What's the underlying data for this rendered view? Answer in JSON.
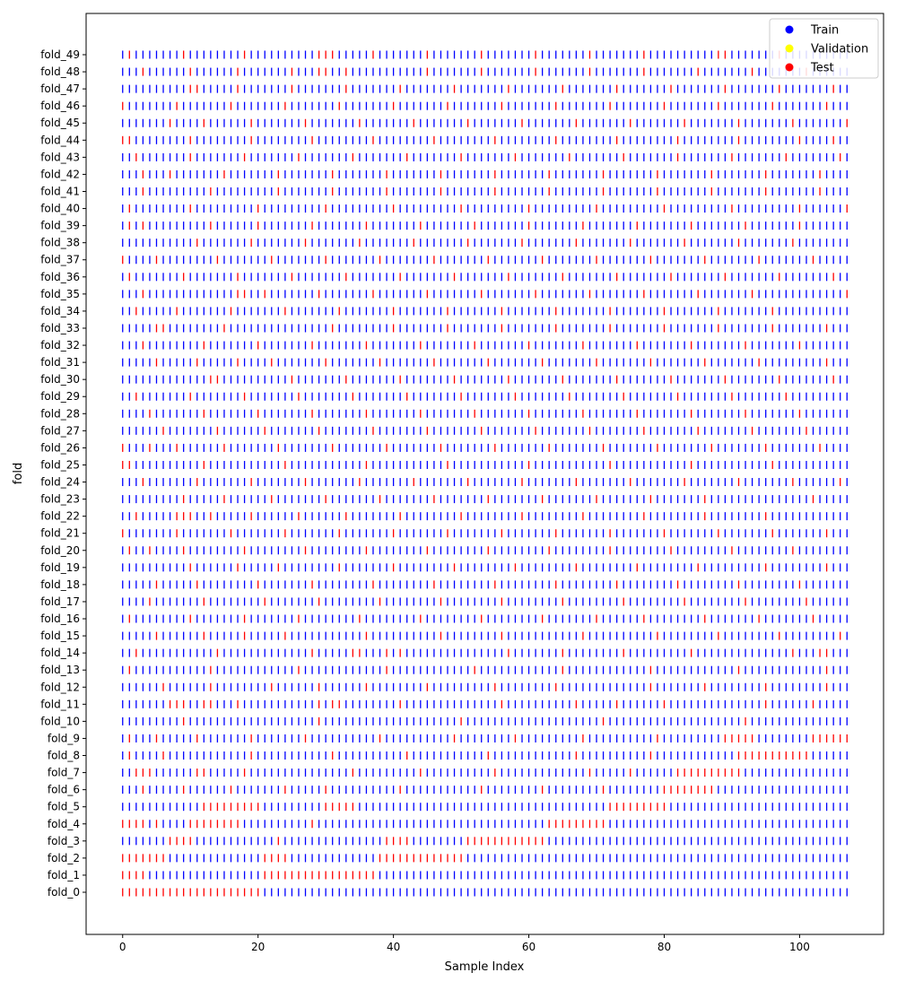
{
  "chart_data": {
    "type": "scatter",
    "title": "",
    "xlabel": "Sample Index",
    "ylabel": "fold",
    "xlim": [
      -5.4,
      112.4
    ],
    "xticks": [
      0,
      20,
      40,
      60,
      80,
      100
    ],
    "n_samples": 108,
    "folds": [
      "fold_0",
      "fold_1",
      "fold_2",
      "fold_3",
      "fold_4",
      "fold_5",
      "fold_6",
      "fold_7",
      "fold_8",
      "fold_9",
      "fold_10",
      "fold_11",
      "fold_12",
      "fold_13",
      "fold_14",
      "fold_15",
      "fold_16",
      "fold_17",
      "fold_18",
      "fold_19",
      "fold_20",
      "fold_21",
      "fold_22",
      "fold_23",
      "fold_24",
      "fold_25",
      "fold_26",
      "fold_27",
      "fold_28",
      "fold_29",
      "fold_30",
      "fold_31",
      "fold_32",
      "fold_33",
      "fold_34",
      "fold_35",
      "fold_36",
      "fold_37",
      "fold_38",
      "fold_39",
      "fold_40",
      "fold_41",
      "fold_42",
      "fold_43",
      "fold_44",
      "fold_45",
      "fold_46",
      "fold_47",
      "fold_48",
      "fold_49"
    ],
    "default_split": "Train",
    "test_indices": {
      "fold_0": [
        0,
        1,
        2,
        3,
        4,
        5,
        6,
        7,
        8,
        9,
        10,
        11,
        12,
        13,
        14,
        15,
        16,
        17,
        18,
        19,
        20
      ],
      "fold_1": [
        0,
        1,
        2,
        3,
        21,
        22,
        23,
        24,
        25,
        26,
        27,
        28,
        29,
        30,
        31,
        32,
        33,
        34,
        35,
        36,
        37
      ],
      "fold_2": [
        0,
        1,
        2,
        3,
        4,
        5,
        6,
        21,
        22,
        23,
        24,
        38,
        39,
        40,
        41,
        42,
        43,
        44,
        45,
        46,
        47,
        48,
        49,
        50
      ],
      "fold_3": [
        7,
        8,
        9,
        10,
        23,
        39,
        40,
        41,
        42,
        51,
        52,
        53,
        54,
        55,
        56,
        57,
        58,
        59,
        60,
        61,
        62
      ],
      "fold_4": [
        0,
        1,
        2,
        3,
        5,
        10,
        11,
        12,
        13,
        14,
        15,
        16,
        17,
        28,
        63,
        64,
        65,
        66,
        67,
        68,
        69,
        70,
        71
      ],
      "fold_5": [
        12,
        13,
        14,
        15,
        16,
        17,
        18,
        19,
        20,
        30,
        31,
        32,
        33,
        34,
        72,
        73,
        74,
        75,
        76,
        77,
        78,
        79,
        80
      ],
      "fold_6": [
        3,
        9,
        16,
        24,
        30,
        41,
        53,
        62,
        71,
        80,
        81,
        82,
        83,
        84,
        85,
        86,
        87
      ],
      "fold_7": [
        2,
        3,
        4,
        11,
        12,
        18,
        34,
        44,
        55,
        69,
        75,
        82,
        83,
        84,
        85,
        86,
        87,
        88,
        89,
        90,
        91
      ],
      "fold_8": [
        1,
        6,
        19,
        31,
        42,
        54,
        67,
        78,
        91,
        92,
        93,
        94,
        95,
        96,
        97,
        98,
        99,
        100,
        101
      ],
      "fold_9": [
        1,
        5,
        11,
        19,
        27,
        38,
        49,
        58,
        68,
        79,
        89,
        90,
        91,
        92,
        93,
        102,
        103,
        104,
        105,
        106,
        107
      ],
      "fold_10": [
        9,
        29,
        50,
        71,
        92
      ],
      "fold_11": [
        7,
        8,
        9,
        12,
        13,
        17,
        29,
        31,
        32,
        41,
        56,
        67,
        73,
        80,
        95,
        102
      ],
      "fold_12": [
        6,
        13,
        22,
        29,
        36,
        45,
        55,
        64,
        78,
        86,
        95,
        104
      ],
      "fold_13": [
        1,
        13,
        26,
        39,
        52,
        65,
        78,
        91,
        104
      ],
      "fold_14": [
        2,
        14,
        28,
        34,
        35,
        39,
        41,
        57,
        65,
        74,
        84,
        99,
        103,
        104
      ],
      "fold_15": [
        5,
        12,
        18,
        24,
        36,
        47,
        56,
        68,
        79,
        88,
        97,
        106
      ],
      "fold_16": [
        1,
        10,
        18,
        26,
        35,
        44,
        53,
        62,
        70,
        77,
        86,
        94,
        102
      ],
      "fold_17": [
        4,
        12,
        21,
        29,
        38,
        47,
        56,
        65,
        74,
        83,
        92,
        101
      ],
      "fold_18": [
        5,
        11,
        20,
        28,
        37,
        46,
        55,
        64,
        73,
        82,
        91,
        100
      ],
      "fold_19": [
        10,
        17,
        23,
        32,
        40,
        49,
        58,
        67,
        76,
        85,
        95,
        104
      ],
      "fold_20": [
        1,
        4,
        9,
        18,
        27,
        36,
        45,
        54,
        63,
        72,
        81,
        90,
        99
      ],
      "fold_21": [
        0,
        8,
        16,
        24,
        32,
        40,
        48,
        56,
        64,
        72,
        80,
        88,
        96,
        104
      ],
      "fold_22": [
        2,
        8,
        9,
        10,
        13,
        19,
        26,
        33,
        41,
        50,
        59,
        68,
        77,
        86,
        95
      ],
      "fold_23": [
        9,
        15,
        22,
        30,
        38,
        46,
        54,
        62,
        70,
        78,
        86,
        102
      ],
      "fold_24": [
        3,
        11,
        19,
        27,
        35,
        43,
        51,
        59,
        67,
        75,
        83,
        91,
        99,
        106
      ],
      "fold_25": [
        0,
        1,
        12,
        24,
        36,
        48,
        60,
        72,
        84,
        96
      ],
      "fold_26": [
        0,
        4,
        8,
        15,
        23,
        31,
        39,
        47,
        55,
        63,
        71,
        79,
        87,
        95,
        103
      ],
      "fold_27": [
        6,
        14,
        21,
        29,
        37,
        45,
        53,
        61,
        69,
        77,
        85,
        93,
        101
      ],
      "fold_28": [
        4,
        12,
        20,
        28,
        36,
        44,
        52,
        60,
        68,
        76,
        84,
        92,
        100
      ],
      "fold_29": [
        2,
        10,
        18,
        26,
        34,
        42,
        50,
        58,
        66,
        74,
        82,
        90,
        98
      ],
      "fold_30": [
        13,
        14,
        25,
        33,
        41,
        49,
        57,
        65,
        73,
        81,
        89,
        97,
        105
      ],
      "fold_31": [
        5,
        11,
        17,
        22,
        30,
        38,
        46,
        54,
        62,
        70,
        78,
        86,
        94,
        104
      ],
      "fold_32": [
        3,
        12,
        20,
        28,
        36,
        44,
        52,
        60,
        68,
        76,
        84,
        92,
        100
      ],
      "fold_33": [
        5,
        6,
        15,
        31,
        40,
        48,
        56,
        64,
        72,
        80,
        88,
        96,
        104
      ],
      "fold_34": [
        2,
        8,
        16,
        24,
        32,
        40,
        48,
        56,
        64,
        72,
        80,
        88,
        96
      ],
      "fold_35": [
        3,
        17,
        18,
        21,
        29,
        37,
        45,
        53,
        61,
        69,
        77,
        85,
        93,
        107
      ],
      "fold_36": [
        1,
        9,
        17,
        25,
        33,
        41,
        49,
        57,
        65,
        73,
        81,
        89,
        97,
        105
      ],
      "fold_37": [
        0,
        5,
        14,
        22,
        30,
        38,
        46,
        54,
        62,
        70,
        78,
        86,
        94,
        102
      ],
      "fold_38": [
        11,
        19,
        27,
        35,
        43,
        51,
        59,
        67,
        75,
        83,
        91,
        99
      ],
      "fold_39": [
        1,
        3,
        13,
        20,
        28,
        36,
        44,
        52,
        60,
        68,
        76,
        84,
        92,
        100
      ],
      "fold_40": [
        1,
        10,
        20,
        30,
        40,
        50,
        60,
        70,
        80,
        90,
        100,
        107
      ],
      "fold_41": [
        3,
        13,
        23,
        31,
        39,
        47,
        55,
        63,
        71,
        79,
        87,
        95,
        103
      ],
      "fold_42": [
        3,
        7,
        15,
        23,
        31,
        39,
        47,
        55,
        63,
        71,
        79,
        87,
        95,
        103
      ],
      "fold_43": [
        2,
        10,
        18,
        26,
        34,
        42,
        50,
        58,
        66,
        74,
        82,
        90,
        98,
        106
      ],
      "fold_44": [
        0,
        1,
        10,
        19,
        28,
        37,
        46,
        55,
        64,
        73,
        82,
        91,
        100,
        105
      ],
      "fold_45": [
        7,
        12,
        19,
        27,
        35,
        43,
        51,
        59,
        67,
        75,
        83,
        91,
        99,
        107
      ],
      "fold_46": [
        0,
        8,
        16,
        24,
        32,
        40,
        48,
        56,
        64,
        72,
        80,
        88,
        96,
        104
      ],
      "fold_47": [
        10,
        11,
        17,
        25,
        33,
        41,
        49,
        57,
        65,
        73,
        81,
        89,
        97,
        105
      ],
      "fold_48": [
        3,
        10,
        17,
        25,
        29,
        30,
        33,
        45,
        53,
        61,
        69,
        77,
        85,
        93,
        101
      ],
      "fold_49": [
        1,
        9,
        18,
        29,
        30,
        31,
        37,
        45,
        53,
        61,
        69,
        77,
        88,
        89,
        97
      ]
    },
    "legend": {
      "placement": "top-right",
      "entries": [
        {
          "label": "Train",
          "color": "#0000ff"
        },
        {
          "label": "Validation",
          "color": "#ffff00"
        },
        {
          "label": "Test",
          "color": "#ff0000"
        }
      ]
    },
    "grid": false
  }
}
